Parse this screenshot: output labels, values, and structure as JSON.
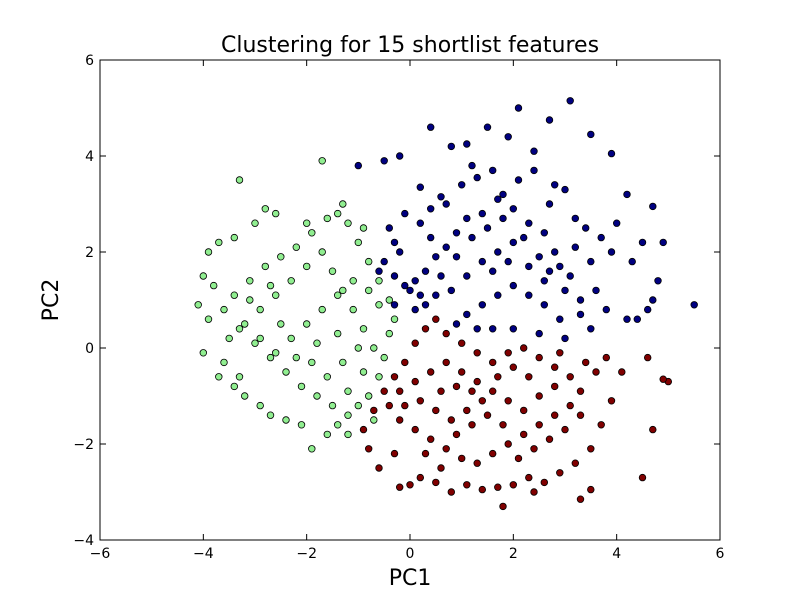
{
  "chart_data": {
    "type": "scatter",
    "title": "Clustering for 15 shortlist features",
    "xlabel": "PC1",
    "ylabel": "PC2",
    "xlim": [
      -6,
      6
    ],
    "ylim": [
      -4,
      6
    ],
    "xticks": [
      -6,
      -4,
      -2,
      0,
      2,
      4,
      6
    ],
    "yticks": [
      -4,
      -2,
      0,
      2,
      4,
      6
    ],
    "xtick_labels": [
      "−6",
      "−4",
      "−2",
      "0",
      "2",
      "4",
      "6"
    ],
    "ytick_labels": [
      "−4",
      "−2",
      "0",
      "2",
      "4",
      "6"
    ],
    "grid": false,
    "legend": "none",
    "series": [
      {
        "color": "#000080",
        "points": [
          [
            2.1,
            5.0
          ],
          [
            3.1,
            5.15
          ],
          [
            1.5,
            4.6
          ],
          [
            2.7,
            4.75
          ],
          [
            0.8,
            4.2
          ],
          [
            1.9,
            4.4
          ],
          [
            2.4,
            4.1
          ],
          [
            3.5,
            4.45
          ],
          [
            1.1,
            4.25
          ],
          [
            0.4,
            4.6
          ],
          [
            -0.2,
            4.0
          ],
          [
            -0.5,
            3.9
          ],
          [
            -1.0,
            3.8
          ],
          [
            0.2,
            3.35
          ],
          [
            0.6,
            3.15
          ],
          [
            1.3,
            3.55
          ],
          [
            2.8,
            3.4
          ],
          [
            3.9,
            4.05
          ],
          [
            4.2,
            3.2
          ],
          [
            4.7,
            2.95
          ],
          [
            4.5,
            2.2
          ],
          [
            4.9,
            2.2
          ],
          [
            4.3,
            1.8
          ],
          [
            4.8,
            1.4
          ],
          [
            4.7,
            1.0
          ],
          [
            5.5,
            0.9
          ],
          [
            4.6,
            0.8
          ],
          [
            4.4,
            0.6
          ],
          [
            4.2,
            0.6
          ],
          [
            3.8,
            0.8
          ],
          [
            3.6,
            1.2
          ],
          [
            3.3,
            1.0
          ],
          [
            3.1,
            1.5
          ],
          [
            2.8,
            2.0
          ],
          [
            2.6,
            2.4
          ],
          [
            2.3,
            2.6
          ],
          [
            2.0,
            2.9
          ],
          [
            1.7,
            3.1
          ],
          [
            1.4,
            2.8
          ],
          [
            1.1,
            2.7
          ],
          [
            0.9,
            2.4
          ],
          [
            0.7,
            2.1
          ],
          [
            0.5,
            1.9
          ],
          [
            0.3,
            1.6
          ],
          [
            0.1,
            1.4
          ],
          [
            -0.1,
            1.3
          ],
          [
            -0.3,
            1.5
          ],
          [
            -0.2,
            2.0
          ],
          [
            -0.4,
            2.5
          ],
          [
            -0.1,
            2.8
          ],
          [
            0.2,
            2.6
          ],
          [
            0.4,
            2.9
          ],
          [
            0.7,
            3.0
          ],
          [
            1.0,
            3.4
          ],
          [
            1.2,
            3.8
          ],
          [
            1.6,
            3.7
          ],
          [
            1.8,
            3.2
          ],
          [
            2.1,
            3.5
          ],
          [
            2.4,
            3.7
          ],
          [
            2.7,
            3.0
          ],
          [
            3.0,
            3.3
          ],
          [
            3.2,
            2.7
          ],
          [
            3.4,
            2.5
          ],
          [
            3.7,
            2.3
          ],
          [
            3.9,
            2.0
          ],
          [
            4.0,
            2.6
          ],
          [
            3.5,
            1.8
          ],
          [
            3.2,
            2.1
          ],
          [
            2.9,
            1.7
          ],
          [
            2.6,
            1.4
          ],
          [
            2.3,
            1.7
          ],
          [
            2.0,
            2.2
          ],
          [
            1.7,
            2.0
          ],
          [
            1.4,
            1.8
          ],
          [
            1.1,
            1.5
          ],
          [
            0.8,
            1.2
          ],
          [
            0.5,
            1.1
          ],
          [
            0.3,
            0.9
          ],
          [
            0.1,
            0.8
          ],
          [
            0.6,
            1.5
          ],
          [
            0.9,
            1.9
          ],
          [
            1.2,
            2.3
          ],
          [
            1.5,
            2.5
          ],
          [
            1.8,
            2.7
          ],
          [
            2.2,
            2.3
          ],
          [
            2.5,
            1.9
          ],
          [
            2.7,
            1.6
          ],
          [
            3.0,
            1.2
          ],
          [
            3.3,
            0.7
          ],
          [
            3.5,
            0.4
          ],
          [
            2.9,
            0.6
          ],
          [
            2.6,
            0.9
          ],
          [
            2.3,
            1.1
          ],
          [
            2.0,
            1.3
          ],
          [
            1.7,
            1.1
          ],
          [
            1.4,
            0.9
          ],
          [
            1.1,
            0.7
          ],
          [
            0.9,
            0.5
          ],
          [
            2.0,
            0.4
          ],
          [
            2.5,
            0.3
          ],
          [
            3.0,
            0.2
          ],
          [
            1.6,
            1.6
          ],
          [
            1.9,
            1.8
          ],
          [
            0.4,
            2.3
          ],
          [
            -0.3,
            2.2
          ],
          [
            -0.5,
            1.8
          ],
          [
            -0.6,
            1.6
          ],
          [
            -0.3,
            0.9
          ],
          [
            0.0,
            1.2
          ],
          [
            0.2,
            1.1
          ],
          [
            1.3,
            0.4
          ],
          [
            1.6,
            0.4
          ]
        ]
      },
      {
        "color": "#90ee90",
        "points": [
          [
            -3.3,
            3.5
          ],
          [
            -1.7,
            3.9
          ],
          [
            -2.8,
            2.9
          ],
          [
            -2.6,
            2.8
          ],
          [
            -3.0,
            2.6
          ],
          [
            -3.4,
            2.3
          ],
          [
            -3.7,
            2.2
          ],
          [
            -3.9,
            2.0
          ],
          [
            -4.0,
            1.5
          ],
          [
            -4.1,
            0.9
          ],
          [
            -3.9,
            0.6
          ],
          [
            -4.0,
            -0.1
          ],
          [
            -3.7,
            -0.6
          ],
          [
            -3.4,
            -0.8
          ],
          [
            -3.2,
            -1.0
          ],
          [
            -2.9,
            -1.2
          ],
          [
            -2.7,
            -1.4
          ],
          [
            -2.4,
            -1.5
          ],
          [
            -2.1,
            -1.6
          ],
          [
            -1.9,
            -2.1
          ],
          [
            -1.6,
            -1.8
          ],
          [
            -1.4,
            -1.6
          ],
          [
            -1.2,
            -1.4
          ],
          [
            -1.0,
            -1.2
          ],
          [
            -0.8,
            -1.0
          ],
          [
            -0.6,
            -0.6
          ],
          [
            -0.5,
            -0.2
          ],
          [
            -0.4,
            0.3
          ],
          [
            -0.3,
            0.6
          ],
          [
            -0.4,
            1.0
          ],
          [
            -0.6,
            1.4
          ],
          [
            -0.8,
            1.8
          ],
          [
            -1.0,
            2.2
          ],
          [
            -1.2,
            2.6
          ],
          [
            -1.3,
            3.0
          ],
          [
            -1.6,
            2.7
          ],
          [
            -1.9,
            2.4
          ],
          [
            -2.2,
            2.1
          ],
          [
            -2.5,
            1.9
          ],
          [
            -2.8,
            1.7
          ],
          [
            -3.1,
            1.4
          ],
          [
            -3.4,
            1.1
          ],
          [
            -3.6,
            0.8
          ],
          [
            -3.3,
            0.4
          ],
          [
            -3.0,
            0.1
          ],
          [
            -2.7,
            -0.2
          ],
          [
            -2.4,
            -0.5
          ],
          [
            -2.1,
            -0.8
          ],
          [
            -1.8,
            -1.0
          ],
          [
            -1.5,
            -1.2
          ],
          [
            -1.2,
            -0.9
          ],
          [
            -0.9,
            -0.5
          ],
          [
            -0.7,
            0.0
          ],
          [
            -0.9,
            0.4
          ],
          [
            -1.1,
            0.8
          ],
          [
            -1.3,
            1.2
          ],
          [
            -1.5,
            1.6
          ],
          [
            -1.7,
            2.0
          ],
          [
            -2.0,
            1.7
          ],
          [
            -2.3,
            1.4
          ],
          [
            -2.6,
            1.1
          ],
          [
            -2.9,
            0.8
          ],
          [
            -3.2,
            0.5
          ],
          [
            -2.9,
            0.2
          ],
          [
            -2.6,
            -0.1
          ],
          [
            -2.3,
            0.2
          ],
          [
            -2.0,
            0.5
          ],
          [
            -1.7,
            0.8
          ],
          [
            -1.4,
            1.1
          ],
          [
            -1.1,
            1.4
          ],
          [
            -0.8,
            1.2
          ],
          [
            -0.6,
            0.9
          ],
          [
            -1.9,
            -0.3
          ],
          [
            -1.6,
            -0.6
          ],
          [
            -1.3,
            -0.3
          ],
          [
            -1.0,
            0.0
          ],
          [
            -1.4,
            0.3
          ],
          [
            -1.8,
            0.1
          ],
          [
            -2.2,
            -0.2
          ],
          [
            -2.5,
            0.5
          ],
          [
            -2.7,
            1.3
          ],
          [
            -3.1,
            1.0
          ],
          [
            -3.5,
            0.2
          ],
          [
            -3.8,
            1.3
          ],
          [
            -2.0,
            2.6
          ],
          [
            -1.4,
            2.8
          ],
          [
            -0.9,
            2.5
          ],
          [
            -3.6,
            -0.3
          ],
          [
            -3.3,
            -0.6
          ],
          [
            -1.2,
            -1.8
          ],
          [
            -0.7,
            -1.5
          ]
        ]
      },
      {
        "color": "#800000",
        "points": [
          [
            1.8,
            -3.3
          ],
          [
            2.4,
            -3.0
          ],
          [
            3.3,
            -3.15
          ],
          [
            3.5,
            -2.95
          ],
          [
            4.5,
            -2.7
          ],
          [
            4.7,
            -1.7
          ],
          [
            5.0,
            -0.7
          ],
          [
            4.9,
            -0.65
          ],
          [
            4.1,
            -0.5
          ],
          [
            4.6,
            -0.2
          ],
          [
            3.8,
            -0.2
          ],
          [
            3.6,
            -0.5
          ],
          [
            3.9,
            -1.1
          ],
          [
            3.7,
            -1.6
          ],
          [
            3.5,
            -2.1
          ],
          [
            3.2,
            -2.4
          ],
          [
            2.9,
            -2.6
          ],
          [
            2.6,
            -2.8
          ],
          [
            2.3,
            -2.7
          ],
          [
            2.0,
            -2.85
          ],
          [
            1.7,
            -2.9
          ],
          [
            1.4,
            -2.95
          ],
          [
            1.1,
            -2.85
          ],
          [
            0.8,
            -3.0
          ],
          [
            0.5,
            -2.8
          ],
          [
            0.2,
            -2.7
          ],
          [
            0.0,
            -2.85
          ],
          [
            -0.2,
            -2.9
          ],
          [
            -0.6,
            -2.5
          ],
          [
            -0.8,
            -2.1
          ],
          [
            -0.9,
            -1.7
          ],
          [
            -0.7,
            -1.3
          ],
          [
            -0.5,
            -0.9
          ],
          [
            -0.3,
            -0.6
          ],
          [
            -0.1,
            -0.3
          ],
          [
            0.1,
            0.1
          ],
          [
            0.3,
            0.4
          ],
          [
            0.5,
            0.6
          ],
          [
            0.7,
            0.3
          ],
          [
            1.0,
            0.1
          ],
          [
            1.3,
            -0.1
          ],
          [
            1.6,
            -0.3
          ],
          [
            1.9,
            -0.1
          ],
          [
            2.2,
            0.0
          ],
          [
            2.5,
            -0.2
          ],
          [
            2.8,
            -0.4
          ],
          [
            3.1,
            -0.6
          ],
          [
            3.3,
            -0.9
          ],
          [
            3.1,
            -1.2
          ],
          [
            2.8,
            -1.4
          ],
          [
            2.5,
            -1.6
          ],
          [
            2.2,
            -1.8
          ],
          [
            1.9,
            -2.0
          ],
          [
            1.6,
            -2.2
          ],
          [
            1.3,
            -2.4
          ],
          [
            1.0,
            -2.3
          ],
          [
            0.7,
            -2.1
          ],
          [
            0.4,
            -1.9
          ],
          [
            0.1,
            -1.7
          ],
          [
            -0.2,
            -1.5
          ],
          [
            -0.4,
            -1.2
          ],
          [
            -0.2,
            -0.9
          ],
          [
            0.1,
            -0.7
          ],
          [
            0.4,
            -0.5
          ],
          [
            0.7,
            -0.3
          ],
          [
            1.0,
            -0.5
          ],
          [
            1.3,
            -0.7
          ],
          [
            1.6,
            -0.9
          ],
          [
            1.9,
            -1.1
          ],
          [
            2.2,
            -1.3
          ],
          [
            2.5,
            -1.0
          ],
          [
            2.8,
            -0.8
          ],
          [
            2.3,
            -0.6
          ],
          [
            2.0,
            -0.4
          ],
          [
            1.7,
            -0.6
          ],
          [
            1.4,
            -1.1
          ],
          [
            1.1,
            -1.3
          ],
          [
            0.8,
            -1.5
          ],
          [
            0.5,
            -1.3
          ],
          [
            0.2,
            -1.1
          ],
          [
            -0.1,
            -1.2
          ],
          [
            0.3,
            -2.2
          ],
          [
            0.6,
            -2.5
          ],
          [
            0.9,
            -1.8
          ],
          [
            1.2,
            -1.6
          ],
          [
            1.5,
            -1.4
          ],
          [
            1.8,
            -1.6
          ],
          [
            2.1,
            -2.3
          ],
          [
            2.4,
            -2.1
          ],
          [
            2.7,
            -1.9
          ],
          [
            3.0,
            -1.7
          ],
          [
            3.3,
            -1.4
          ],
          [
            3.4,
            -0.3
          ],
          [
            2.9,
            -0.1
          ],
          [
            0.6,
            -0.9
          ],
          [
            0.9,
            -0.8
          ],
          [
            1.2,
            -0.9
          ],
          [
            -0.3,
            -2.2
          ]
        ]
      }
    ]
  }
}
